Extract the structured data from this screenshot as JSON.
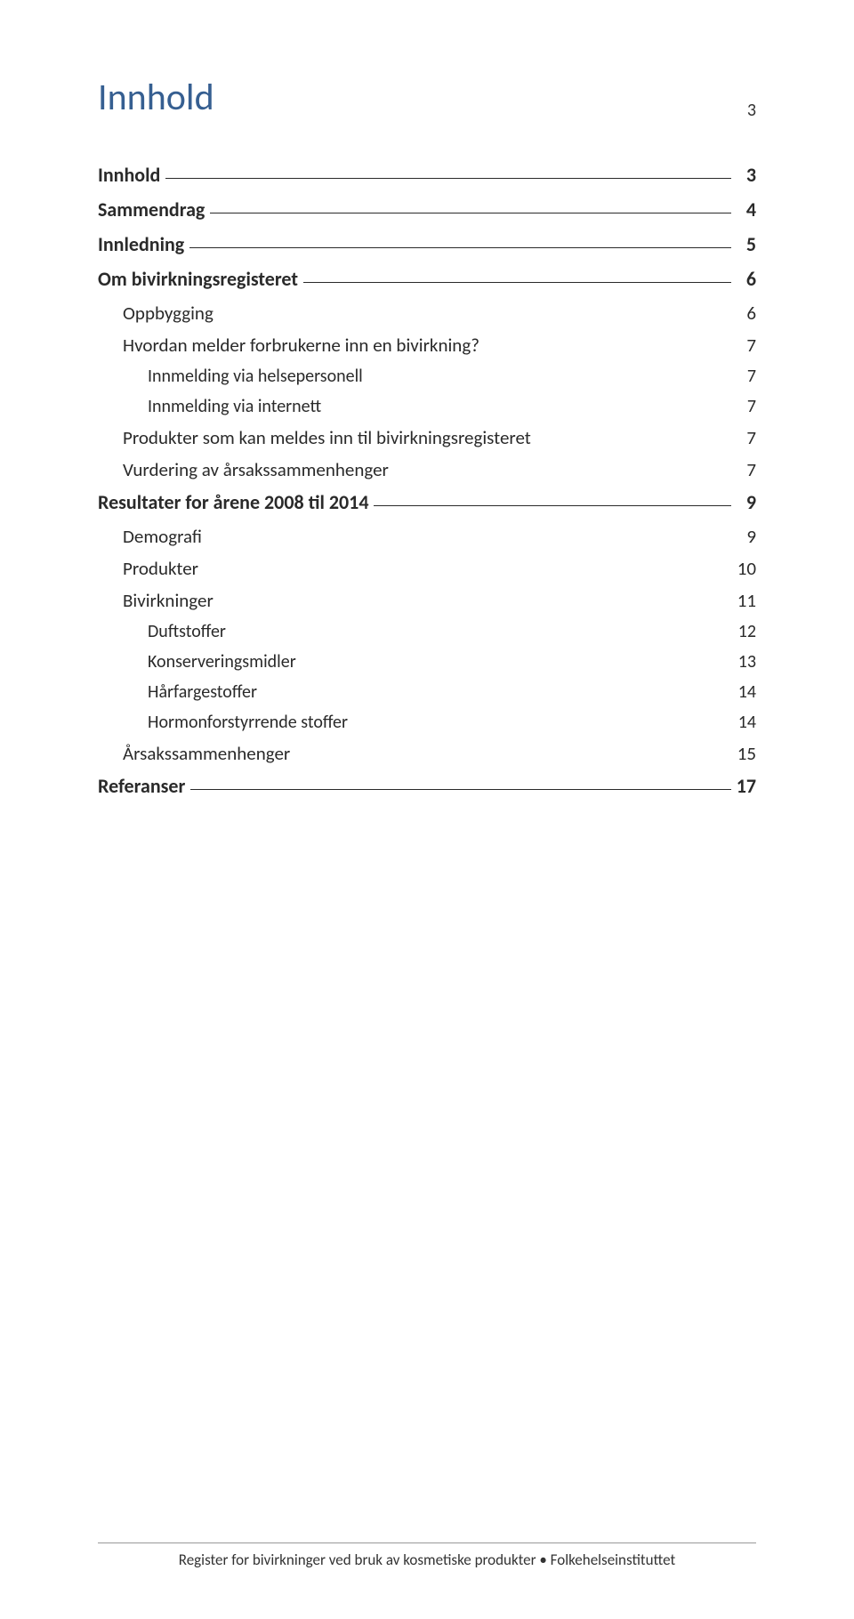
{
  "page_number": "3",
  "title": "Innhold",
  "toc": [
    {
      "level": 1,
      "label": "Innhold",
      "page": "3",
      "leader": "underline"
    },
    {
      "level": 1,
      "label": "Sammendrag",
      "page": "4",
      "leader": "underline"
    },
    {
      "level": 1,
      "label": "Innledning",
      "page": "5",
      "leader": "underline"
    },
    {
      "level": 1,
      "label": "Om bivirkningsregisteret",
      "page": "6",
      "leader": "underline"
    },
    {
      "level": 2,
      "label": "Oppbygging",
      "page": "6",
      "leader": "none"
    },
    {
      "level": 2,
      "label": "Hvordan melder forbrukerne inn en bivirkning?",
      "page": "7",
      "leader": "none"
    },
    {
      "level": 3,
      "label": "Innmelding via helsepersonell",
      "page": "7",
      "leader": "none"
    },
    {
      "level": 3,
      "label": "Innmelding via internett",
      "page": "7",
      "leader": "none"
    },
    {
      "level": 2,
      "label": "Produkter som kan meldes inn til bivirkningsregisteret",
      "page": "7",
      "leader": "none"
    },
    {
      "level": 2,
      "label": "Vurdering av årsakssammenhenger",
      "page": "7",
      "leader": "none"
    },
    {
      "level": 1,
      "label": "Resultater for årene 2008 til 2014",
      "page": "9",
      "leader": "underline"
    },
    {
      "level": 2,
      "label": "Demografi",
      "page": "9",
      "leader": "none"
    },
    {
      "level": 2,
      "label": "Produkter",
      "page": "10",
      "leader": "none"
    },
    {
      "level": 2,
      "label": "Bivirkninger",
      "page": "11",
      "leader": "none"
    },
    {
      "level": 3,
      "label": "Duftstoffer",
      "page": "12",
      "leader": "none"
    },
    {
      "level": 3,
      "label": "Konserveringsmidler",
      "page": "13",
      "leader": "none"
    },
    {
      "level": 3,
      "label": "Hårfargestoffer",
      "page": "14",
      "leader": "none"
    },
    {
      "level": 3,
      "label": "Hormonforstyrrende stoffer",
      "page": "14",
      "leader": "none"
    },
    {
      "level": 2,
      "label": "Årsakssammenhenger",
      "page": "15",
      "leader": "none"
    },
    {
      "level": 1,
      "label": "Referanser",
      "page": "17",
      "leader": "underline"
    }
  ],
  "footer": "Register for bivirkninger ved bruk av kosmetiske produkter • Folkehelseinstituttet",
  "colors": {
    "title": "#365f91",
    "text": "#2a2a2a",
    "footer_rule": "#999999",
    "background": "#ffffff"
  },
  "typography": {
    "title_fontsize_pt": 28,
    "lvl1_fontsize_pt": 13,
    "lvl2_fontsize_pt": 12,
    "lvl3_fontsize_pt": 11,
    "footer_fontsize_pt": 10,
    "font_family": "Calibri"
  }
}
